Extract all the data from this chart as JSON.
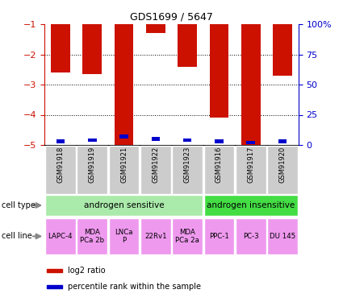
{
  "title": "GDS1699 / 5647",
  "samples": [
    "GSM91918",
    "GSM91919",
    "GSM91921",
    "GSM91922",
    "GSM91923",
    "GSM91916",
    "GSM91917",
    "GSM91920"
  ],
  "log2_ratio": [
    -2.6,
    -2.65,
    -5.0,
    -1.3,
    -2.4,
    -4.1,
    -5.0,
    -2.7
  ],
  "percentile_rank": [
    3,
    4,
    7,
    5,
    4,
    3,
    2,
    3
  ],
  "cell_type_groups": [
    {
      "label": "androgen sensitive",
      "start": 0,
      "end": 4,
      "color": "#aaeaaa"
    },
    {
      "label": "androgen insensitive",
      "start": 5,
      "end": 7,
      "color": "#44dd44"
    }
  ],
  "cell_lines": [
    "LAPC-4",
    "MDA\nPCa 2b",
    "LNCa\nP",
    "22Rv1",
    "MDA\nPCa 2a",
    "PPC-1",
    "PC-3",
    "DU 145"
  ],
  "cell_line_color": "#ee99ee",
  "sample_bg_color": "#cccccc",
  "bar_color": "#cc1100",
  "percentile_color": "#0000cc",
  "ylim_left": [
    -5,
    -1
  ],
  "yticks_left": [
    -5,
    -4,
    -3,
    -2,
    -1
  ],
  "yticks_right_vals": [
    0,
    25,
    50,
    75,
    100
  ],
  "yticks_right_labels": [
    "0",
    "25",
    "50",
    "75",
    "100%"
  ],
  "ylabel_left_color": "#cc1100",
  "ylabel_right_color": "#0000cc",
  "legend_items": [
    {
      "label": "log2 ratio",
      "color": "#cc1100"
    },
    {
      "label": "percentile rank within the sample",
      "color": "#0000cc"
    }
  ],
  "arrow_color": "#888888"
}
